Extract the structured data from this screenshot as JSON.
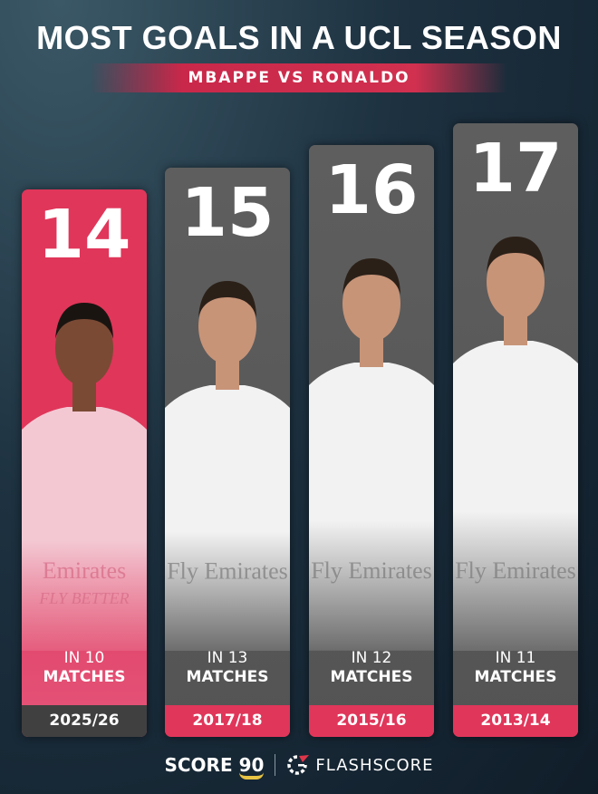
{
  "header": {
    "title": "MOST GOALS IN A UCL SEASON",
    "subtitle": "MBAPPE VS RONALDO"
  },
  "colors": {
    "highlight": "#e0365a",
    "bar": "#585858",
    "season_dark": "#404040",
    "background": "#16273a"
  },
  "chart_data": {
    "type": "bar",
    "title": "MOST GOALS IN A UCL SEASON",
    "subtitle": "MBAPPE VS RONALDO",
    "categories": [
      "2025/26",
      "2017/18",
      "2015/16",
      "2013/14"
    ],
    "values": [
      14,
      15,
      16,
      17
    ],
    "matches": [
      10,
      13,
      12,
      11
    ],
    "players": [
      "Mbappe",
      "Ronaldo",
      "Ronaldo",
      "Ronaldo"
    ],
    "highlight_index": 0,
    "matches_prefix": "IN",
    "matches_suffix": "MATCHES"
  },
  "columns": [
    {
      "goals": "14",
      "in": "IN 10",
      "matches": "MATCHES",
      "season": "2025/26",
      "kit_text": "Emirates",
      "kit_sub": "FLY BETTER"
    },
    {
      "goals": "15",
      "in": "IN 13",
      "matches": "MATCHES",
      "season": "2017/18",
      "kit_text": "Fly Emirates"
    },
    {
      "goals": "16",
      "in": "IN 12",
      "matches": "MATCHES",
      "season": "2015/16",
      "kit_text": "Fly Emirates"
    },
    {
      "goals": "17",
      "in": "IN 11",
      "matches": "MATCHES",
      "season": "2013/14",
      "kit_text": "Fly Emirates"
    }
  ],
  "footer": {
    "brand1": "SCORE",
    "brand1_num": "90",
    "brand2": "FLASHSCORE"
  }
}
